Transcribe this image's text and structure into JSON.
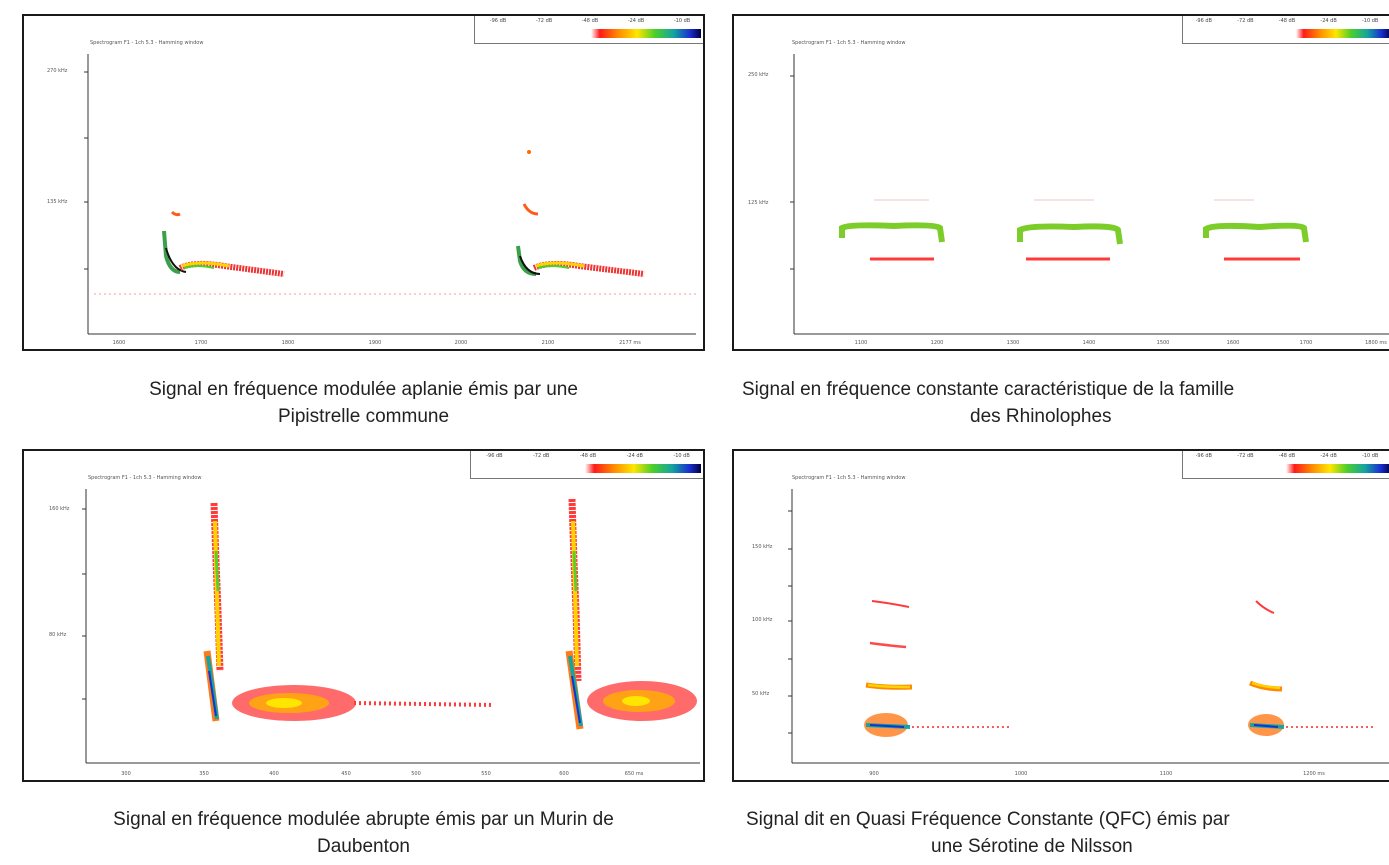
{
  "panels": [
    {
      "id": "pipistrelle",
      "plot_title": "Spectrogram F1 - 1ch 5.3 - Hamming window",
      "legend_ticks": [
        "-96 dB",
        "-72 dB",
        "-48 dB",
        "-24 dB",
        "-10 dB"
      ],
      "y_ticks": [
        "270 kHz",
        "135 kHz"
      ],
      "x_ticks": [
        "1600",
        "1700",
        "1800",
        "1900",
        "2000",
        "2100",
        "2177 ms"
      ],
      "caption_line1": "Signal en fréquence modulée aplanie émis par une",
      "caption_line2": "Pipistrelle commune"
    },
    {
      "id": "rhinolophe",
      "plot_title": "Spectrogram F1 - 1ch 5.3 - Hamming window",
      "legend_ticks": [
        "-96 dB",
        "-72 dB",
        "-48 dB",
        "-24 dB",
        "-10 dB"
      ],
      "y_ticks": [
        "250 kHz",
        "125 kHz"
      ],
      "x_ticks": [
        "1100",
        "1200",
        "1300",
        "1400",
        "1500",
        "1600",
        "1700",
        "1800 ms"
      ],
      "caption_line1": "Signal en fréquence constante caractéristique de la famille",
      "caption_line2": "des Rhinolophes"
    },
    {
      "id": "murin",
      "plot_title": "Spectrogram F1 - 1ch 5.3 - Hamming window",
      "legend_ticks": [
        "-96 dB",
        "-72 dB",
        "-48 dB",
        "-24 dB",
        "-10 dB"
      ],
      "y_ticks": [
        "160 kHz",
        "80 kHz"
      ],
      "x_ticks": [
        "300",
        "350",
        "400",
        "450",
        "500",
        "550",
        "600",
        "650 ms"
      ],
      "caption_line1": "Signal en fréquence modulée abrupte émis par un Murin de",
      "caption_line2": "Daubenton"
    },
    {
      "id": "serotine",
      "plot_title": "Spectrogram F1 - 1ch 5.3 - Hamming window",
      "legend_ticks": [
        "-96 dB",
        "-72 dB",
        "-48 dB",
        "-24 dB",
        "-10 dB"
      ],
      "y_ticks": [
        "150 kHz",
        "100 kHz",
        "50 kHz"
      ],
      "x_ticks": [
        "900",
        "1000",
        "1100",
        "1200 ms"
      ],
      "caption_line1": "Signal dit en Quasi Fréquence Constante (QFC) émis par",
      "caption_line2": "une Sérotine de Nilsson"
    }
  ]
}
